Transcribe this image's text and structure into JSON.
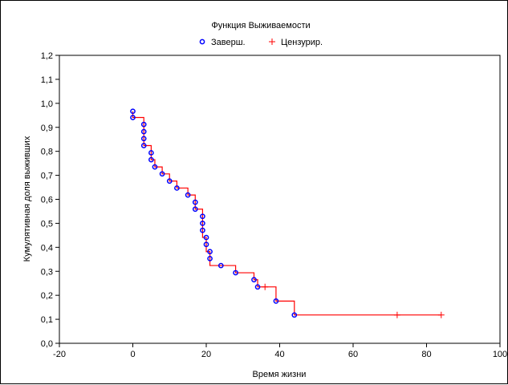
{
  "chart_data": {
    "type": "step-line",
    "title": "Функция Выживаемости",
    "xlabel": "Время жизни",
    "ylabel": "Кумулятивная доля выживших",
    "xlim": [
      -20,
      100
    ],
    "ylim": [
      0.0,
      1.2
    ],
    "x_ticks": [
      -20,
      0,
      20,
      40,
      60,
      80,
      100
    ],
    "y_ticks": [
      0.0,
      0.1,
      0.2,
      0.3,
      0.4,
      0.5,
      0.6,
      0.7,
      0.8,
      0.9,
      1.0,
      1.1,
      1.2
    ],
    "x_tick_labels": [
      "-20",
      "0",
      "20",
      "40",
      "60",
      "80",
      "100"
    ],
    "y_tick_labels": [
      "0,0",
      "0,1",
      "0,2",
      "0,3",
      "0,4",
      "0,5",
      "0,6",
      "0,7",
      "0,8",
      "0,9",
      "1,0",
      "1,1",
      "1,2"
    ],
    "grid": false,
    "legend_position": "top",
    "legend": [
      {
        "label": "Заверш.",
        "marker": "circle",
        "color": "#0000ff"
      },
      {
        "label": "Цензурир.",
        "marker": "plus",
        "color": "#ff0000"
      }
    ],
    "step_color": "#ff0000",
    "step": {
      "x": [
        0,
        0,
        3,
        3,
        3,
        3,
        5,
        5,
        6,
        8,
        10,
        12,
        15,
        17,
        17,
        19,
        19,
        19,
        19,
        20,
        20,
        21,
        21,
        24,
        28,
        33,
        34,
        36,
        39,
        44,
        72,
        84
      ],
      "y": [
        0.967,
        0.941,
        0.912,
        0.882,
        0.853,
        0.824,
        0.794,
        0.765,
        0.735,
        0.706,
        0.676,
        0.647,
        0.618,
        0.588,
        0.559,
        0.529,
        0.5,
        0.471,
        0.441,
        0.412,
        0.382,
        0.353,
        0.324,
        0.324,
        0.294,
        0.265,
        0.235,
        0.235,
        0.176,
        0.118,
        0.118,
        0.118
      ]
    },
    "series": [
      {
        "name": "Заверш.",
        "x": [
          0,
          0,
          3,
          3,
          3,
          3,
          5,
          5,
          6,
          8,
          10,
          12,
          15,
          17,
          17,
          19,
          19,
          19,
          20,
          20,
          21,
          21,
          24,
          28,
          33,
          34,
          39,
          44
        ],
        "y": [
          0.967,
          0.941,
          0.912,
          0.882,
          0.853,
          0.824,
          0.794,
          0.765,
          0.735,
          0.706,
          0.676,
          0.647,
          0.618,
          0.588,
          0.559,
          0.529,
          0.5,
          0.471,
          0.441,
          0.412,
          0.382,
          0.353,
          0.324,
          0.294,
          0.265,
          0.235,
          0.176,
          0.118
        ]
      },
      {
        "name": "Цензурир.",
        "x": [
          36,
          72,
          84
        ],
        "y": [
          0.235,
          0.118,
          0.118
        ]
      }
    ]
  }
}
